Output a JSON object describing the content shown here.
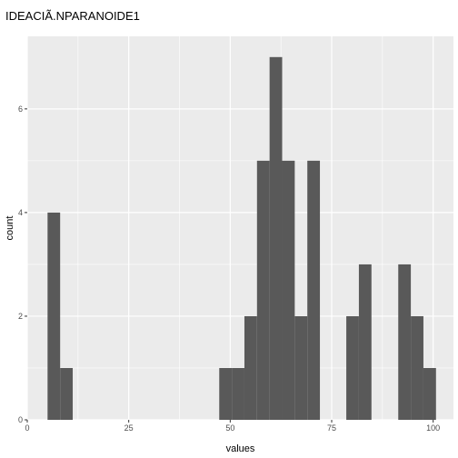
{
  "chart_data": {
    "type": "bar",
    "title": "IDEACIÃ.NPARANOIDE1",
    "xlabel": "values",
    "ylabel": "count",
    "xlim": [
      0,
      105
    ],
    "ylim": [
      0,
      7.4
    ],
    "x_ticks": [
      0,
      25,
      50,
      75,
      100
    ],
    "x_tick_labels": [
      "0",
      "25",
      "50",
      "75",
      "100"
    ],
    "y_ticks": [
      0,
      2,
      4,
      6
    ],
    "y_tick_labels": [
      "0",
      "2",
      "4",
      "6"
    ],
    "grid": true,
    "panel_background": "#ebebeb",
    "grid_color": "#ffffff",
    "bar_color": "#595959",
    "bins": [
      {
        "x0": 5.0,
        "x1": 8.1,
        "count": 4
      },
      {
        "x0": 8.1,
        "x1": 11.2,
        "count": 1
      },
      {
        "x0": 47.3,
        "x1": 50.4,
        "count": 1
      },
      {
        "x0": 50.4,
        "x1": 53.5,
        "count": 1
      },
      {
        "x0": 53.5,
        "x1": 56.6,
        "count": 2
      },
      {
        "x0": 56.6,
        "x1": 59.7,
        "count": 5
      },
      {
        "x0": 59.7,
        "x1": 62.8,
        "count": 7
      },
      {
        "x0": 62.8,
        "x1": 65.9,
        "count": 5
      },
      {
        "x0": 65.9,
        "x1": 69.0,
        "count": 2
      },
      {
        "x0": 69.0,
        "x1": 72.1,
        "count": 5
      },
      {
        "x0": 78.6,
        "x1": 81.7,
        "count": 2
      },
      {
        "x0": 81.7,
        "x1": 84.8,
        "count": 3
      },
      {
        "x0": 91.4,
        "x1": 94.5,
        "count": 3
      },
      {
        "x0": 94.5,
        "x1": 97.6,
        "count": 2
      },
      {
        "x0": 97.6,
        "x1": 100.7,
        "count": 1
      }
    ]
  }
}
